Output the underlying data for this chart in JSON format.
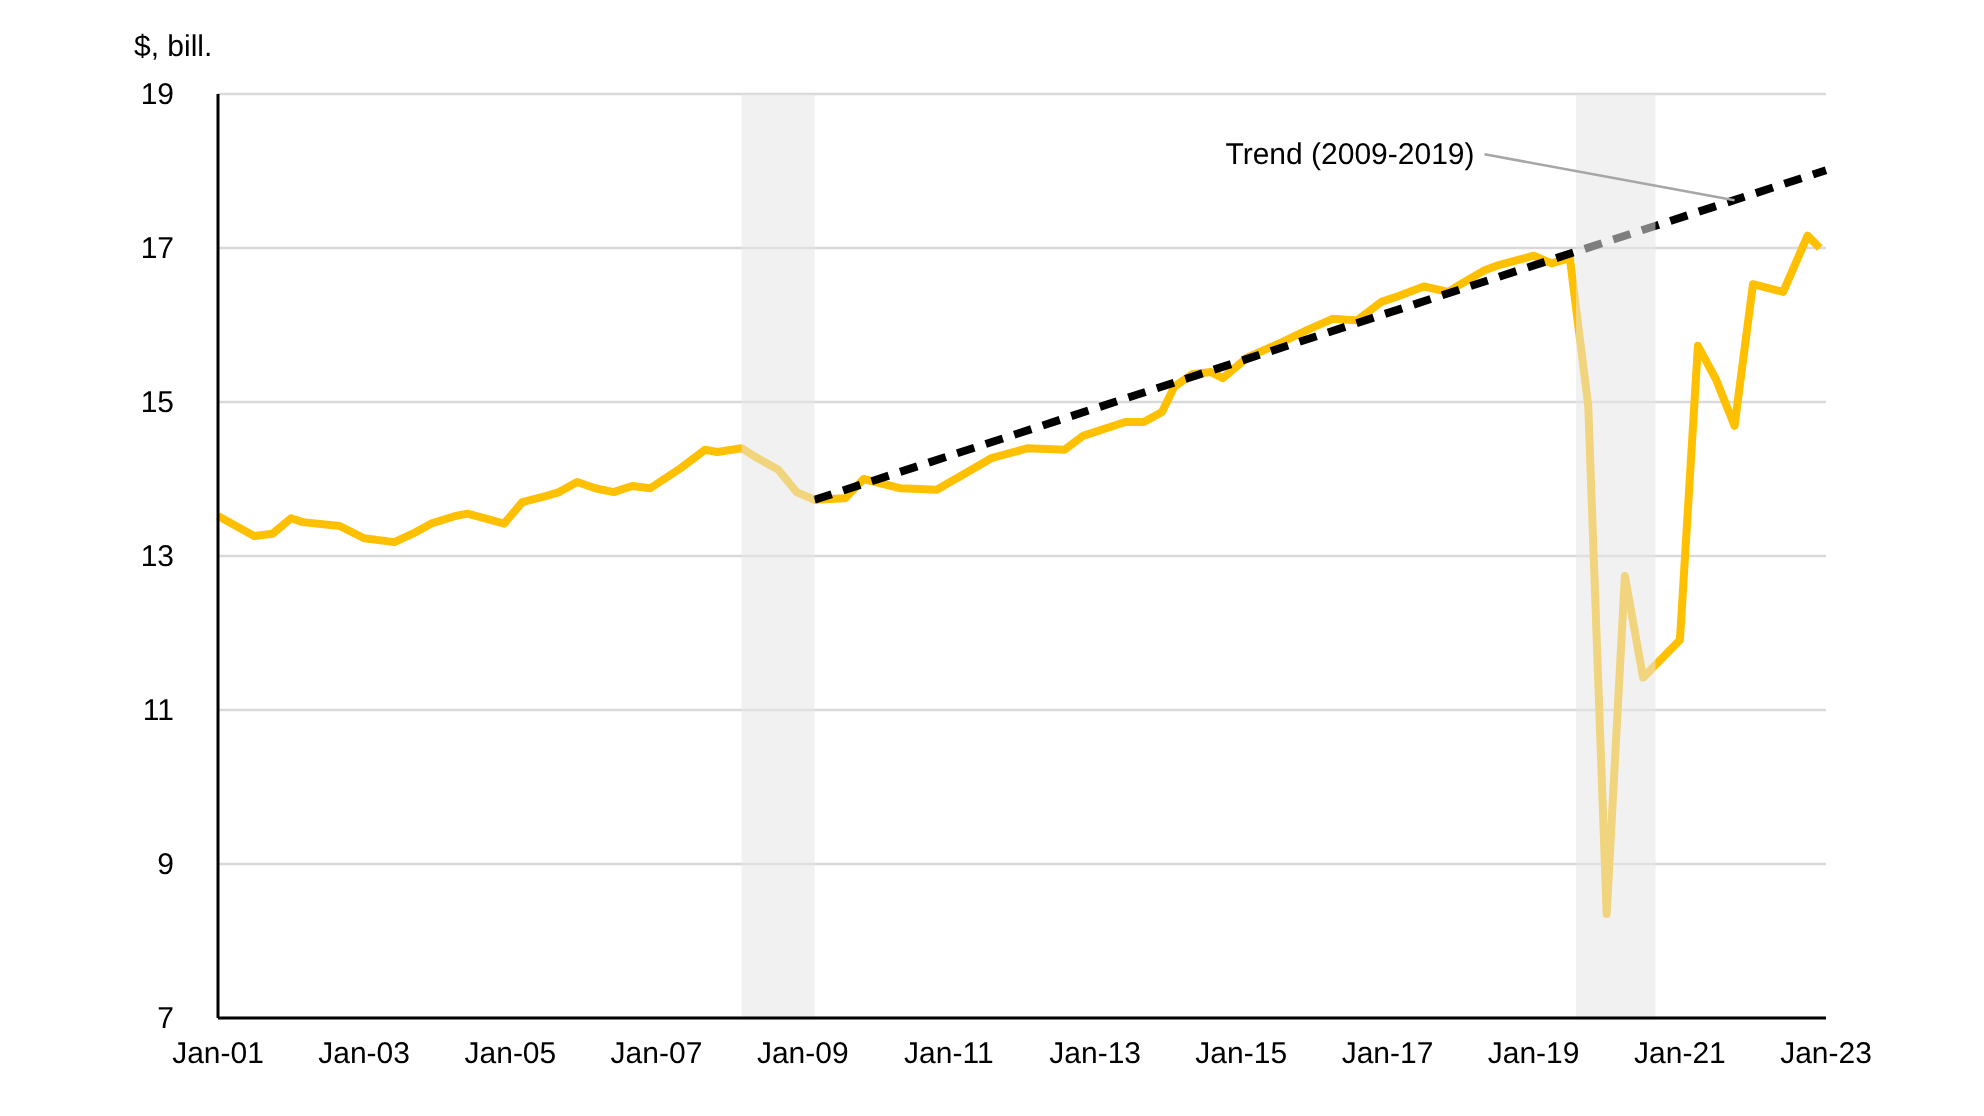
{
  "chart_data": {
    "type": "line",
    "ylabel": "$, bill.",
    "xlim": [
      "2001-01",
      "2023-01"
    ],
    "xticks": [
      {
        "value": "2001-01",
        "label": "Jan-01"
      },
      {
        "value": "2003-01",
        "label": "Jan-03"
      },
      {
        "value": "2005-01",
        "label": "Jan-05"
      },
      {
        "value": "2007-01",
        "label": "Jan-07"
      },
      {
        "value": "2009-01",
        "label": "Jan-09"
      },
      {
        "value": "2011-01",
        "label": "Jan-11"
      },
      {
        "value": "2013-01",
        "label": "Jan-13"
      },
      {
        "value": "2015-01",
        "label": "Jan-15"
      },
      {
        "value": "2017-01",
        "label": "Jan-17"
      },
      {
        "value": "2019-01",
        "label": "Jan-19"
      },
      {
        "value": "2021-01",
        "label": "Jan-21"
      },
      {
        "value": "2023-01",
        "label": "Jan-23"
      }
    ],
    "ylim": [
      7,
      19
    ],
    "yticks": [
      7,
      9,
      11,
      13,
      15,
      17,
      19
    ],
    "grid": "y",
    "series": [
      {
        "color": "#ffc000",
        "line_style": "solid",
        "x": [
          "2001-01",
          "2001-07",
          "2001-10",
          "2002-01",
          "2002-03",
          "2002-09",
          "2003-01",
          "2003-06",
          "2003-09",
          "2003-12",
          "2004-04",
          "2004-06",
          "2004-12",
          "2005-03",
          "2005-07",
          "2005-09",
          "2005-12",
          "2006-03",
          "2006-06",
          "2006-09",
          "2006-12",
          "2007-05",
          "2007-09",
          "2007-11",
          "2008-03",
          "2008-05",
          "2008-09",
          "2008-12",
          "2009-03",
          "2009-08",
          "2009-11",
          "2010-05",
          "2010-11",
          "2011-03",
          "2011-08",
          "2012-02",
          "2012-08",
          "2012-11",
          "2013-06",
          "2013-09",
          "2013-12",
          "2014-02",
          "2014-05",
          "2014-08",
          "2014-10",
          "2015-02",
          "2015-07",
          "2015-12",
          "2016-04",
          "2016-08",
          "2016-12",
          "2017-03",
          "2017-07",
          "2017-11",
          "2018-01",
          "2018-05",
          "2018-07",
          "2019-01",
          "2019-04",
          "2019-07",
          "2019-10",
          "2020-01",
          "2020-04",
          "2020-07",
          "2021-01",
          "2021-04",
          "2021-07",
          "2021-10",
          "2022-01",
          "2022-06",
          "2022-10",
          "2022-12"
        ],
        "values": [
          13.52,
          13.26,
          13.29,
          13.49,
          13.44,
          13.39,
          13.23,
          13.18,
          13.29,
          13.42,
          13.52,
          13.55,
          13.42,
          13.7,
          13.78,
          13.83,
          13.96,
          13.88,
          13.83,
          13.91,
          13.88,
          14.14,
          14.38,
          14.35,
          14.4,
          14.3,
          14.12,
          13.83,
          13.73,
          13.75,
          14.0,
          13.88,
          13.86,
          14.04,
          14.27,
          14.4,
          14.38,
          14.56,
          14.74,
          14.74,
          14.87,
          15.2,
          15.36,
          15.39,
          15.31,
          15.58,
          15.75,
          15.94,
          16.08,
          16.06,
          16.3,
          16.38,
          16.5,
          16.43,
          16.53,
          16.71,
          16.77,
          16.9,
          16.8,
          16.87,
          14.95,
          8.35,
          12.74,
          11.42,
          11.91,
          15.73,
          15.29,
          14.69,
          16.53,
          16.43,
          17.16,
          17.0
        ]
      },
      {
        "type": "line",
        "color": "#000000",
        "line_style": "dashed",
        "x": [
          "2009-03",
          "2023-01"
        ],
        "values": [
          13.73,
          18.01
        ]
      }
    ],
    "bands": [
      {
        "axis": "x",
        "from": "2008-03",
        "to": "2009-03",
        "color": "#e6e6e6"
      },
      {
        "axis": "x",
        "from": "2019-08",
        "to": "2020-09",
        "color": "#e6e6e6"
      }
    ],
    "annotations": [
      {
        "text": "Trend (2009-2019)",
        "x": "2021-10",
        "y": 17.62
      }
    ]
  }
}
